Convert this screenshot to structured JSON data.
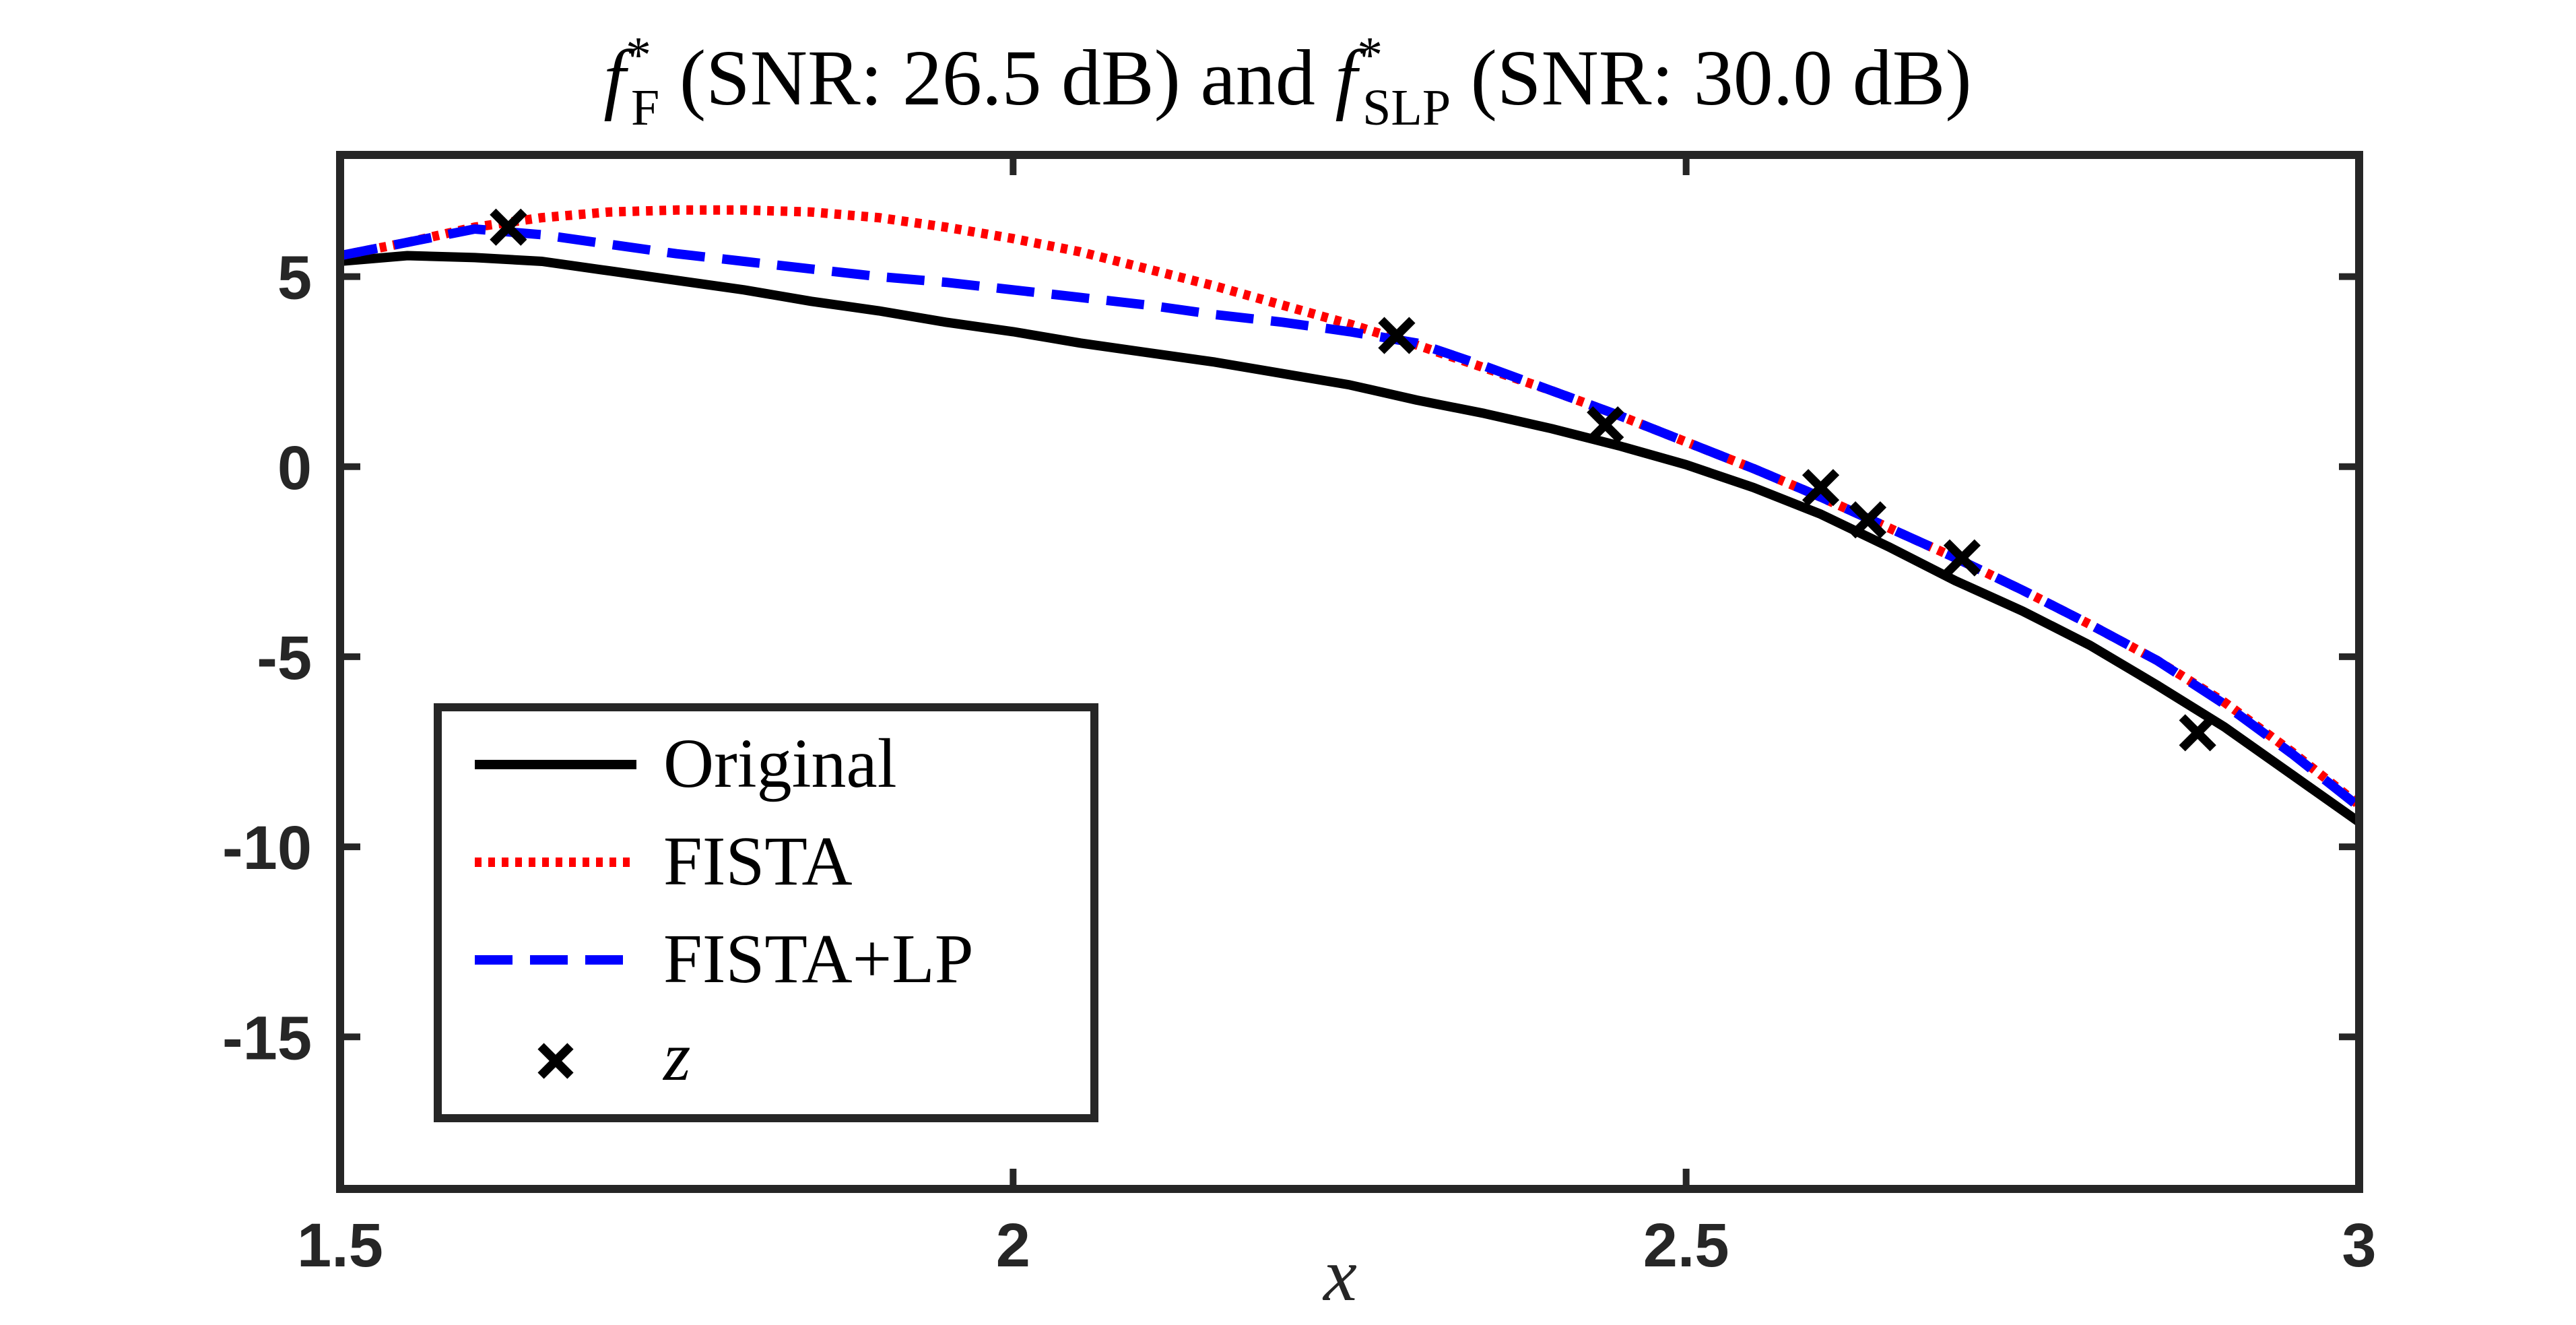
{
  "chart_data": {
    "type": "line",
    "title": {
      "f1": "f",
      "f1_sup": "*",
      "f1_sub": "F",
      "part1": " (SNR: 26.5 dB) and ",
      "f2": "f",
      "f2_sup": "*",
      "f2_sub": "SLP",
      "part2": " (SNR: 30.0 dB)"
    },
    "xlabel": "x",
    "ylabel": "",
    "xlim": [
      1.5,
      3.0
    ],
    "ylim": [
      -19,
      8.2
    ],
    "xticks": [
      1.5,
      2,
      2.5,
      3
    ],
    "xtick_labels": [
      "1.5",
      "2",
      "2.5",
      "3"
    ],
    "yticks": [
      5,
      0,
      -5,
      -10,
      -15
    ],
    "ytick_labels": [
      "5",
      "0",
      "-5",
      "-10",
      "-15"
    ],
    "grid": false,
    "legend_position": "lower-left",
    "series": [
      {
        "name": "Original",
        "style": "solid",
        "color": "#000000",
        "x": [
          1.5,
          1.55,
          1.6,
          1.65,
          1.7,
          1.75,
          1.8,
          1.85,
          1.9,
          1.95,
          2.0,
          2.05,
          2.1,
          2.15,
          2.2,
          2.25,
          2.3,
          2.35,
          2.4,
          2.45,
          2.5,
          2.55,
          2.6,
          2.65,
          2.7,
          2.75,
          2.8,
          2.85,
          2.9,
          2.95,
          3.0
        ],
        "y": [
          5.4,
          5.55,
          5.5,
          5.4,
          5.15,
          4.9,
          4.65,
          4.35,
          4.1,
          3.8,
          3.55,
          3.25,
          3.0,
          2.75,
          2.45,
          2.15,
          1.75,
          1.4,
          1.0,
          0.55,
          0.05,
          -0.55,
          -1.25,
          -2.1,
          -3.0,
          -3.8,
          -4.7,
          -5.75,
          -6.85,
          -8.1,
          -9.35
        ]
      },
      {
        "name": "FISTA",
        "style": "dotted",
        "color": "#ff0000",
        "x": [
          1.5,
          1.55,
          1.6,
          1.65,
          1.7,
          1.75,
          1.8,
          1.85,
          1.9,
          1.95,
          2.0,
          2.05,
          2.1,
          2.15,
          2.2,
          2.25,
          2.3,
          2.35,
          2.4,
          2.45,
          2.5,
          2.55,
          2.6,
          2.65,
          2.7,
          2.75,
          2.8,
          2.85,
          2.9,
          2.95,
          3.0
        ],
        "y": [
          5.55,
          5.9,
          6.3,
          6.55,
          6.7,
          6.75,
          6.75,
          6.7,
          6.55,
          6.3,
          6.0,
          5.65,
          5.2,
          4.75,
          4.25,
          3.75,
          3.2,
          2.6,
          2.0,
          1.35,
          0.65,
          -0.05,
          -0.8,
          -1.6,
          -2.4,
          -3.25,
          -4.15,
          -5.1,
          -6.2,
          -7.5,
          -8.9
        ]
      },
      {
        "name": "FISTA+LP",
        "style": "dashed",
        "color": "#0000ff",
        "x": [
          1.5,
          1.55,
          1.6,
          1.65,
          1.7,
          1.75,
          1.8,
          1.85,
          1.9,
          1.95,
          2.0,
          2.05,
          2.1,
          2.15,
          2.2,
          2.25,
          2.3,
          2.35,
          2.4,
          2.45,
          2.5,
          2.55,
          2.6,
          2.65,
          2.7,
          2.75,
          2.8,
          2.85,
          2.9,
          2.95,
          3.0
        ],
        "y": [
          5.55,
          5.9,
          6.25,
          6.1,
          5.85,
          5.6,
          5.4,
          5.2,
          5.0,
          4.85,
          4.65,
          4.45,
          4.25,
          4.0,
          3.8,
          3.55,
          3.25,
          2.65,
          2.0,
          1.35,
          0.65,
          -0.05,
          -0.8,
          -1.6,
          -2.4,
          -3.25,
          -4.15,
          -5.1,
          -6.25,
          -7.55,
          -8.95
        ]
      },
      {
        "name": "z",
        "style": "markers",
        "marker": "x",
        "color": "#000000",
        "x": [
          1.625,
          2.285,
          2.44,
          2.6,
          2.635,
          2.705,
          2.88
        ],
        "y": [
          6.3,
          3.45,
          1.1,
          -0.55,
          -1.4,
          -2.4,
          -7.0
        ]
      }
    ]
  }
}
